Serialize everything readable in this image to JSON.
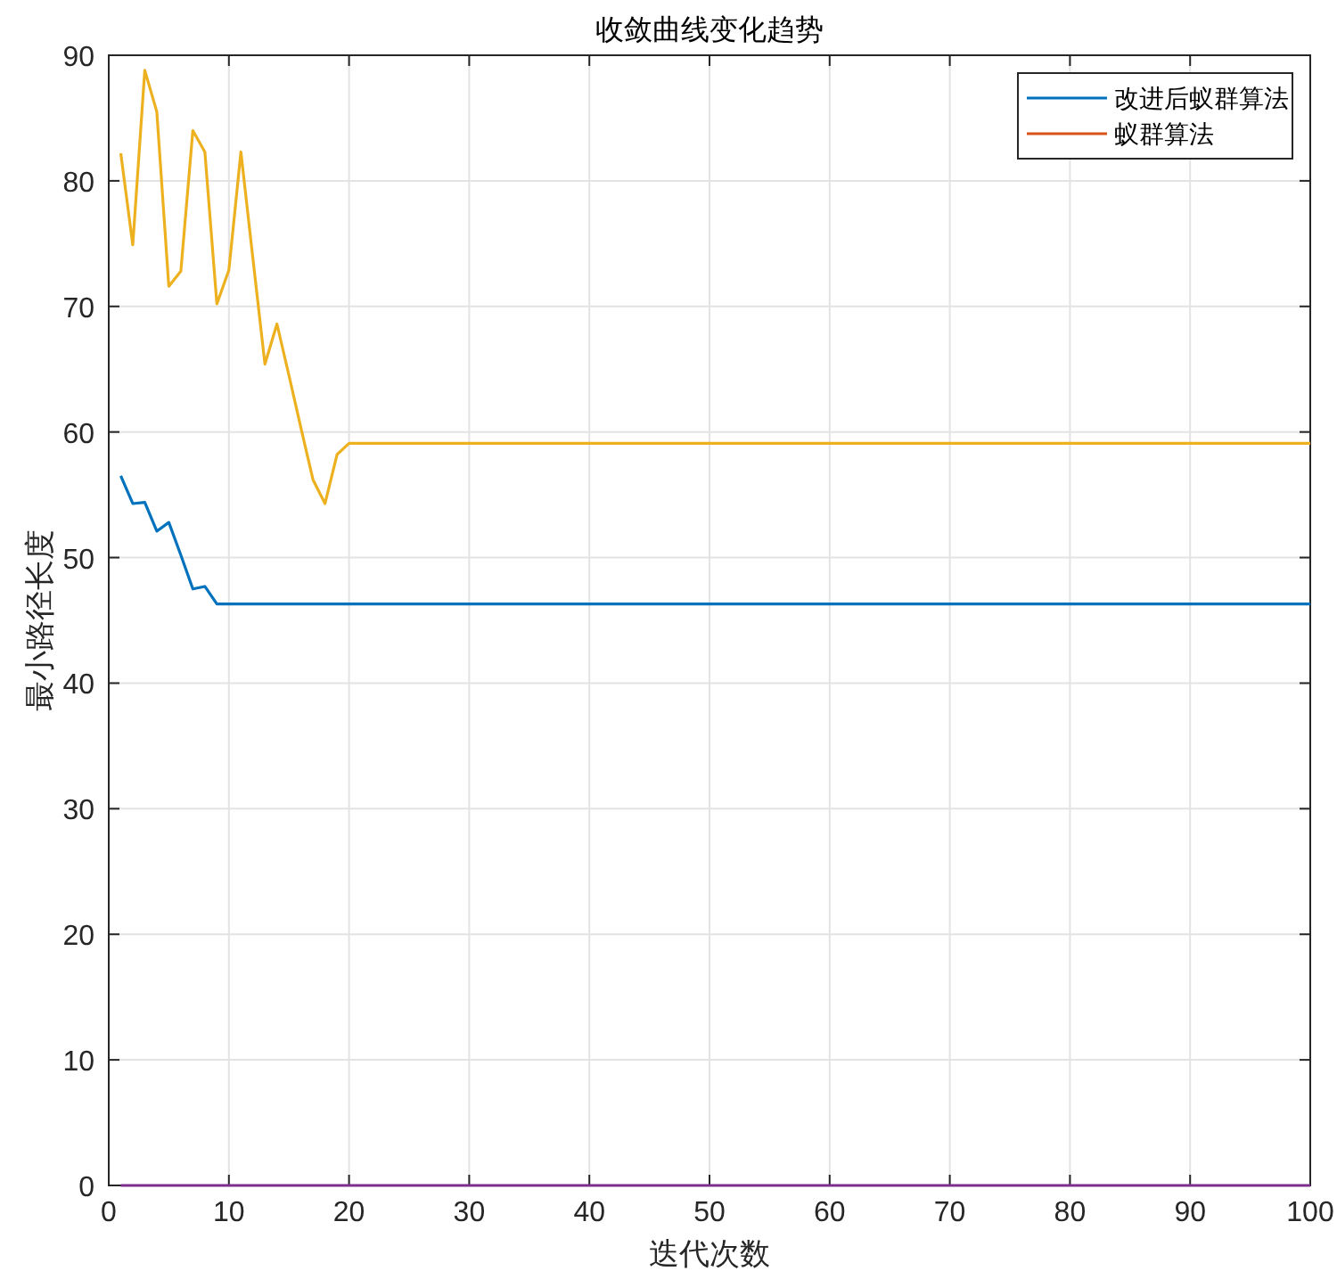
{
  "chart_data": {
    "type": "line",
    "title": "收敛曲线变化趋势",
    "xlabel": "迭代次数",
    "ylabel": "最小路径长度",
    "xlim": [
      0,
      100
    ],
    "ylim": [
      0,
      90
    ],
    "xticks": [
      0,
      10,
      20,
      30,
      40,
      50,
      60,
      70,
      80,
      90,
      100
    ],
    "yticks": [
      0,
      10,
      20,
      30,
      40,
      50,
      60,
      70,
      80,
      90
    ],
    "grid": true,
    "legend": "top right",
    "series": [
      {
        "name": "改进后蚁群算法",
        "color": "#0072bd",
        "x": [
          1,
          2,
          3,
          4,
          5,
          6,
          7,
          8,
          9,
          100
        ],
        "values": [
          56.5,
          54.3,
          54.4,
          52.1,
          52.8,
          50.2,
          47.5,
          47.7,
          46.3,
          46.3
        ]
      },
      {
        "name": "蚁群算法",
        "color": "#d95319"
      },
      {
        "color": "#edb120",
        "x": [
          1,
          2,
          3,
          4,
          5,
          6,
          7,
          8,
          9,
          10,
          11,
          12,
          13,
          14,
          15,
          16,
          17,
          18,
          19,
          20,
          100
        ],
        "values": [
          82.2,
          74.9,
          88.8,
          85.5,
          71.6,
          72.8,
          84.0,
          82.3,
          70.2,
          72.9,
          82.3,
          73.8,
          65.4,
          68.6,
          64.5,
          60.3,
          56.2,
          54.3,
          58.2,
          59.1,
          59.1
        ]
      },
      {
        "color": "#7e2f8e",
        "x": [
          1,
          100
        ],
        "values": [
          0,
          0
        ]
      }
    ]
  }
}
